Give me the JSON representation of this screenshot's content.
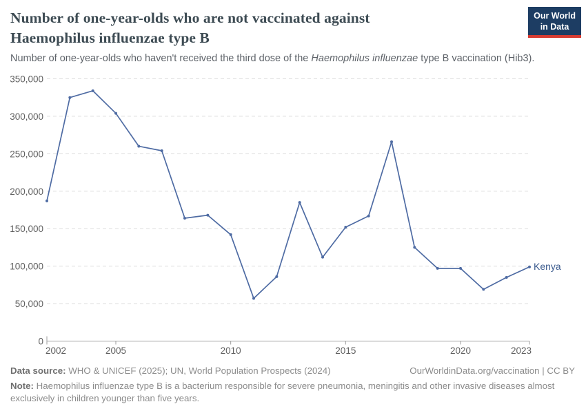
{
  "header": {
    "title_line1": "Number of one-year-olds who are not vaccinated against",
    "title_line2": "Haemophilus influenzae type B",
    "subtitle_prefix": "Number of one-year-olds who haven't received the third dose of the ",
    "subtitle_italic": "Haemophilus influenzae",
    "subtitle_suffix": " type B vaccination (Hib3).",
    "logo_line1": "Our World",
    "logo_line2": "in Data"
  },
  "colors": {
    "logo_bg": "#1d3d63",
    "logo_red": "#d73c32",
    "line": "#4e6ba3",
    "series_label": "#3d5c8f",
    "grid": "#dcdcdc",
    "axis": "#9e9e9e"
  },
  "chart_data": {
    "type": "line",
    "title": "Number of one-year-olds who are not vaccinated against Haemophilus influenzae type B",
    "xlabel": "",
    "ylabel": "",
    "xlim": [
      2002,
      2023
    ],
    "ylim": [
      0,
      350000
    ],
    "grid": "horizontal-dashed",
    "legend_position": "end-of-line",
    "xticks": [
      2002,
      2005,
      2010,
      2015,
      2020,
      2023
    ],
    "yticks": [
      0,
      50000,
      100000,
      150000,
      200000,
      250000,
      300000,
      350000
    ],
    "ytick_labels": [
      "0",
      "50,000",
      "100,000",
      "150,000",
      "200,000",
      "250,000",
      "300,000",
      "350,000"
    ],
    "series": [
      {
        "name": "Kenya",
        "color": "#4e6ba3",
        "label_color": "#3d5c8f",
        "x": [
          2002,
          2003,
          2004,
          2005,
          2006,
          2007,
          2008,
          2009,
          2010,
          2011,
          2012,
          2013,
          2014,
          2015,
          2016,
          2017,
          2018,
          2019,
          2020,
          2021,
          2022,
          2023
        ],
        "values": [
          187000,
          325000,
          334000,
          304000,
          260000,
          254000,
          164000,
          168000,
          142000,
          57000,
          86000,
          185000,
          112000,
          152000,
          167000,
          266000,
          125000,
          97000,
          97000,
          69000,
          85000,
          99000
        ]
      }
    ]
  },
  "footer": {
    "datasource_label": "Data source:",
    "datasource_text": " WHO & UNICEF (2025); UN, World Population Prospects (2024)",
    "credit_url": "OurWorldinData.org/vaccination",
    "credit_separator": " | ",
    "credit_license": "CC BY",
    "note_label": "Note:",
    "note_text": " Haemophilus influenzae type B is a bacterium responsible for severe pneumonia, meningitis and other invasive diseases almost exclusively in children younger than five years."
  }
}
